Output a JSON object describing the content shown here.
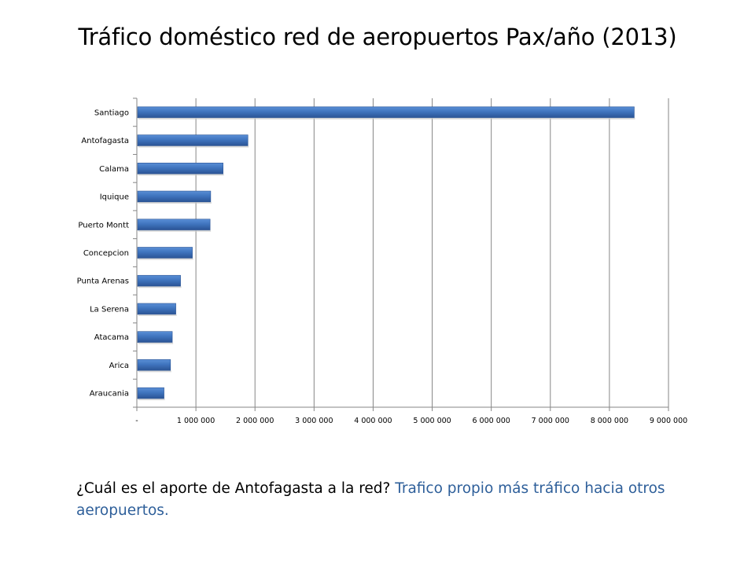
{
  "title": "Tráfico doméstico red de aeropuertos Pax/año (2013)",
  "footer": {
    "question": "¿Cuál es el aporte de Antofagasta a la red?",
    "answer": "Trafico propio más tráfico hacia otros aeropuertos."
  },
  "colors": {
    "bar": "#3f74be",
    "bar_dark": "#2a5394",
    "answer_text": "#2e5f9a",
    "gridline": "#868686"
  },
  "chart_data": {
    "type": "bar",
    "orientation": "horizontal",
    "title": "Tráfico doméstico red de aeropuertos Pax/año (2013)",
    "xlabel": "",
    "ylabel": "",
    "categories": [
      "Santiago",
      "Antofagasta",
      "Calama",
      "Iquique",
      "Puerto Montt",
      "Concepcion",
      "Punta Arenas",
      "La Serena",
      "Atacama",
      "Arica",
      "Araucania"
    ],
    "values": [
      8420000,
      1880000,
      1460000,
      1250000,
      1240000,
      940000,
      740000,
      660000,
      600000,
      570000,
      460000
    ],
    "xlim": [
      0,
      9000000
    ],
    "x_ticks": [
      0,
      1000000,
      2000000,
      3000000,
      4000000,
      5000000,
      6000000,
      7000000,
      8000000,
      9000000
    ],
    "x_tick_labels": [
      "-",
      "1 000 000",
      "2 000 000",
      "3 000 000",
      "4 000 000",
      "5 000 000",
      "6 000 000",
      "7 000 000",
      "8 000 000",
      "9 000 000"
    ],
    "grid": true,
    "legend": "none"
  }
}
